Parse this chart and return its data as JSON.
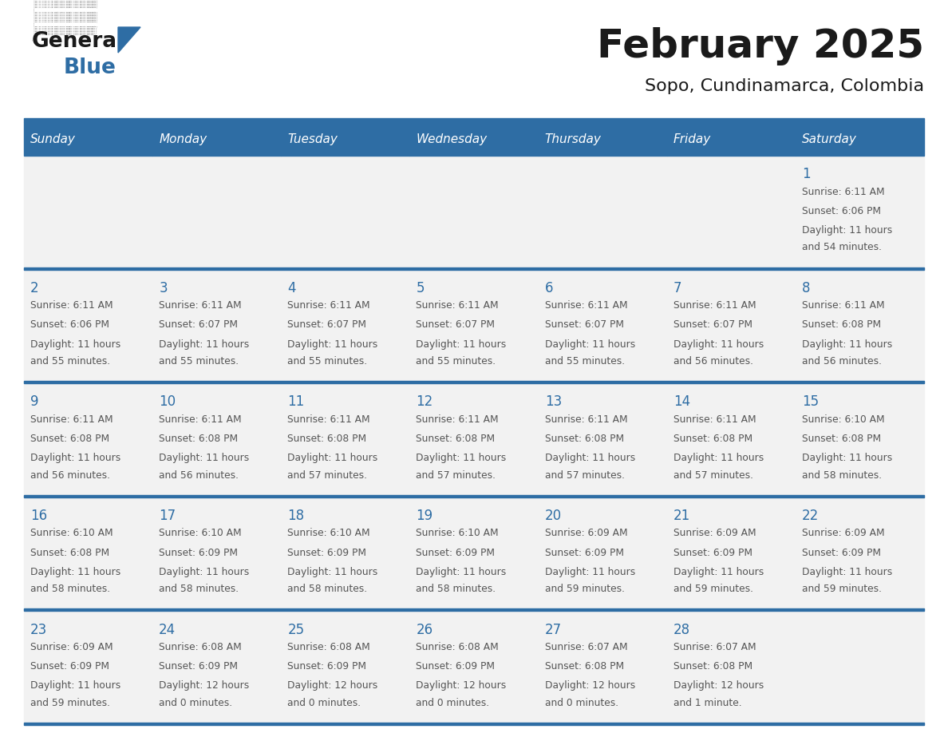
{
  "title": "February 2025",
  "subtitle": "Sopo, Cundinamarca, Colombia",
  "days_of_week": [
    "Sunday",
    "Monday",
    "Tuesday",
    "Wednesday",
    "Thursday",
    "Friday",
    "Saturday"
  ],
  "header_bg": "#2E6DA4",
  "header_text": "#FFFFFF",
  "cell_bg": "#F2F2F2",
  "divider_color": "#2E6DA4",
  "text_color": "#555555",
  "day_number_color": "#2E6DA4",
  "title_color": "#1a1a1a",
  "calendar_data": [
    [
      null,
      null,
      null,
      null,
      null,
      null,
      {
        "day": "1",
        "sunrise": "6:11 AM",
        "sunset": "6:06 PM",
        "daylight1": "11 hours",
        "daylight2": "and 54 minutes."
      }
    ],
    [
      {
        "day": "2",
        "sunrise": "6:11 AM",
        "sunset": "6:06 PM",
        "daylight1": "11 hours",
        "daylight2": "and 55 minutes."
      },
      {
        "day": "3",
        "sunrise": "6:11 AM",
        "sunset": "6:07 PM",
        "daylight1": "11 hours",
        "daylight2": "and 55 minutes."
      },
      {
        "day": "4",
        "sunrise": "6:11 AM",
        "sunset": "6:07 PM",
        "daylight1": "11 hours",
        "daylight2": "and 55 minutes."
      },
      {
        "day": "5",
        "sunrise": "6:11 AM",
        "sunset": "6:07 PM",
        "daylight1": "11 hours",
        "daylight2": "and 55 minutes."
      },
      {
        "day": "6",
        "sunrise": "6:11 AM",
        "sunset": "6:07 PM",
        "daylight1": "11 hours",
        "daylight2": "and 55 minutes."
      },
      {
        "day": "7",
        "sunrise": "6:11 AM",
        "sunset": "6:07 PM",
        "daylight1": "11 hours",
        "daylight2": "and 56 minutes."
      },
      {
        "day": "8",
        "sunrise": "6:11 AM",
        "sunset": "6:08 PM",
        "daylight1": "11 hours",
        "daylight2": "and 56 minutes."
      }
    ],
    [
      {
        "day": "9",
        "sunrise": "6:11 AM",
        "sunset": "6:08 PM",
        "daylight1": "11 hours",
        "daylight2": "and 56 minutes."
      },
      {
        "day": "10",
        "sunrise": "6:11 AM",
        "sunset": "6:08 PM",
        "daylight1": "11 hours",
        "daylight2": "and 56 minutes."
      },
      {
        "day": "11",
        "sunrise": "6:11 AM",
        "sunset": "6:08 PM",
        "daylight1": "11 hours",
        "daylight2": "and 57 minutes."
      },
      {
        "day": "12",
        "sunrise": "6:11 AM",
        "sunset": "6:08 PM",
        "daylight1": "11 hours",
        "daylight2": "and 57 minutes."
      },
      {
        "day": "13",
        "sunrise": "6:11 AM",
        "sunset": "6:08 PM",
        "daylight1": "11 hours",
        "daylight2": "and 57 minutes."
      },
      {
        "day": "14",
        "sunrise": "6:11 AM",
        "sunset": "6:08 PM",
        "daylight1": "11 hours",
        "daylight2": "and 57 minutes."
      },
      {
        "day": "15",
        "sunrise": "6:10 AM",
        "sunset": "6:08 PM",
        "daylight1": "11 hours",
        "daylight2": "and 58 minutes."
      }
    ],
    [
      {
        "day": "16",
        "sunrise": "6:10 AM",
        "sunset": "6:08 PM",
        "daylight1": "11 hours",
        "daylight2": "and 58 minutes."
      },
      {
        "day": "17",
        "sunrise": "6:10 AM",
        "sunset": "6:09 PM",
        "daylight1": "11 hours",
        "daylight2": "and 58 minutes."
      },
      {
        "day": "18",
        "sunrise": "6:10 AM",
        "sunset": "6:09 PM",
        "daylight1": "11 hours",
        "daylight2": "and 58 minutes."
      },
      {
        "day": "19",
        "sunrise": "6:10 AM",
        "sunset": "6:09 PM",
        "daylight1": "11 hours",
        "daylight2": "and 58 minutes."
      },
      {
        "day": "20",
        "sunrise": "6:09 AM",
        "sunset": "6:09 PM",
        "daylight1": "11 hours",
        "daylight2": "and 59 minutes."
      },
      {
        "day": "21",
        "sunrise": "6:09 AM",
        "sunset": "6:09 PM",
        "daylight1": "11 hours",
        "daylight2": "and 59 minutes."
      },
      {
        "day": "22",
        "sunrise": "6:09 AM",
        "sunset": "6:09 PM",
        "daylight1": "11 hours",
        "daylight2": "and 59 minutes."
      }
    ],
    [
      {
        "day": "23",
        "sunrise": "6:09 AM",
        "sunset": "6:09 PM",
        "daylight1": "11 hours",
        "daylight2": "and 59 minutes."
      },
      {
        "day": "24",
        "sunrise": "6:08 AM",
        "sunset": "6:09 PM",
        "daylight1": "12 hours",
        "daylight2": "and 0 minutes."
      },
      {
        "day": "25",
        "sunrise": "6:08 AM",
        "sunset": "6:09 PM",
        "daylight1": "12 hours",
        "daylight2": "and 0 minutes."
      },
      {
        "day": "26",
        "sunrise": "6:08 AM",
        "sunset": "6:09 PM",
        "daylight1": "12 hours",
        "daylight2": "and 0 minutes."
      },
      {
        "day": "27",
        "sunrise": "6:07 AM",
        "sunset": "6:08 PM",
        "daylight1": "12 hours",
        "daylight2": "and 0 minutes."
      },
      {
        "day": "28",
        "sunrise": "6:07 AM",
        "sunset": "6:08 PM",
        "daylight1": "12 hours",
        "daylight2": "and 1 minute."
      },
      null
    ]
  ]
}
